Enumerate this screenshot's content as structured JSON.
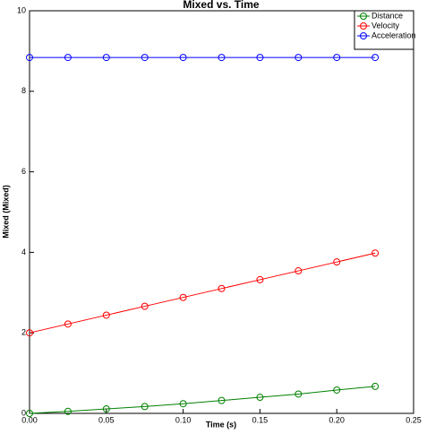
{
  "chart_data": {
    "type": "line",
    "title": "Mixed vs. Time",
    "x_label": "Time (s)",
    "y_label": "Mixed (Mixed)",
    "x": [
      0,
      0.025,
      0.05,
      0.075,
      0.1,
      0.125,
      0.15,
      0.175,
      0.2,
      0.225
    ],
    "series": [
      {
        "name": "Distance",
        "color": "#008000",
        "values": [
          0,
          0.05,
          0.11,
          0.17,
          0.24,
          0.32,
          0.4,
          0.48,
          0.58,
          0.67
        ]
      },
      {
        "name": "Velocity",
        "color": "#ff0000",
        "values": [
          2,
          2.22,
          2.44,
          2.66,
          2.88,
          3.1,
          3.32,
          3.54,
          3.76,
          3.98
        ]
      },
      {
        "name": "Acceleration",
        "color": "#0000ff",
        "values": [
          8.84,
          8.84,
          8.84,
          8.84,
          8.84,
          8.84,
          8.84,
          8.84,
          8.84,
          8.84
        ]
      }
    ],
    "xlim": [
      0,
      0.25
    ],
    "ylim": [
      0,
      10
    ],
    "xticks": [
      {
        "value": 0,
        "label": "0.00"
      },
      0.05,
      {
        "value": 0.1,
        "label": "0.10"
      },
      0.15,
      {
        "value": 0.2,
        "label": "0.20"
      },
      0.25
    ],
    "yticks": [
      0,
      2,
      4,
      6,
      8,
      10
    ],
    "legend": "upper right",
    "marker": "circle",
    "grid": false
  }
}
